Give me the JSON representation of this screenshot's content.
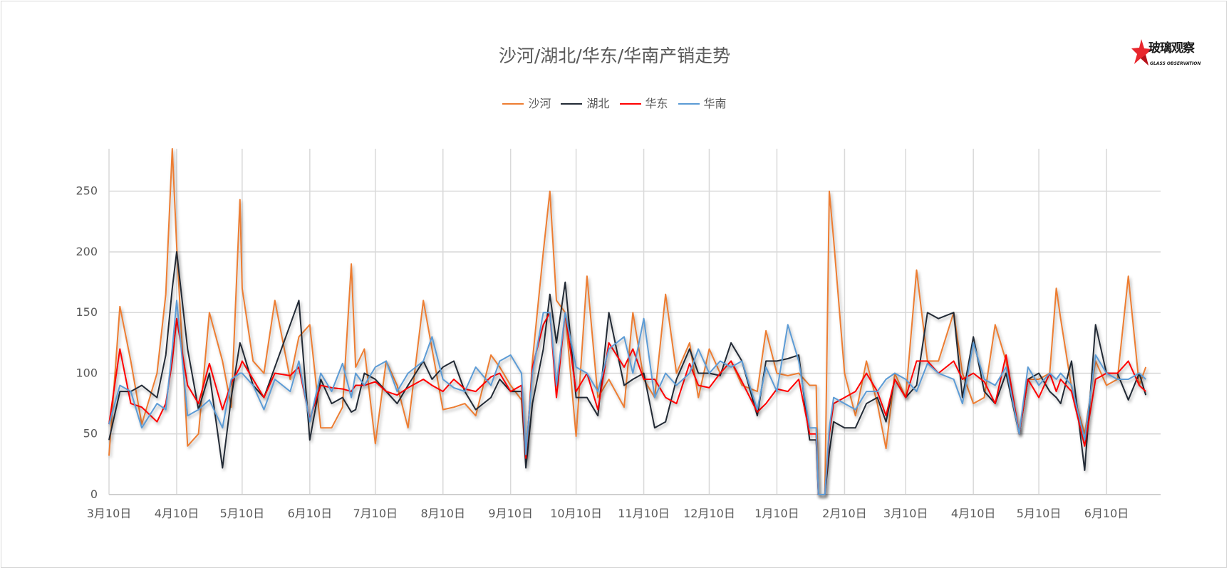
{
  "logo": {
    "text_cn": "玻璃观察",
    "text_en": "GLASS OBSERVATION",
    "accent": "#E8262D"
  },
  "chart_data": {
    "type": "line",
    "title": "沙河/湖北/华东/华南产销走势",
    "xlabel": "",
    "ylabel": "",
    "ylim": [
      0,
      285
    ],
    "yticks": [
      0,
      50,
      100,
      150,
      200,
      250
    ],
    "xticks": [
      "3月10日",
      "4月10日",
      "5月10日",
      "6月10日",
      "7月10日",
      "8月10日",
      "9月10日",
      "10月10日",
      "11月10日",
      "12月10日",
      "1月10日",
      "2月10日",
      "3月10日",
      "4月10日",
      "5月10日",
      "6月10日"
    ],
    "grid": true,
    "legend_position": "top",
    "x": [
      "3月10日",
      "3月15日",
      "3月20日",
      "3月25日",
      "4月1日",
      "4月5日",
      "4月8日",
      "4月10日",
      "4月15日",
      "4月20日",
      "4月25日",
      "5月1日",
      "5月5日",
      "5月9日",
      "5月10日",
      "5月15日",
      "5月20日",
      "5月25日",
      "6月1日",
      "6月5日",
      "6月10日",
      "6月15日",
      "6月20日",
      "6月25日",
      "6月29日",
      "7月1日",
      "7月5日",
      "7月10日",
      "7月15日",
      "7月20日",
      "7月25日",
      "8月1日",
      "8月5日",
      "8月10日",
      "8月15日",
      "8月20日",
      "8月25日",
      "9月1日",
      "9月5日",
      "9月10日",
      "9月15日",
      "9月17日",
      "9月20日",
      "9月25日",
      "9月28日",
      "10月1日",
      "10月5日",
      "10月10日",
      "10月15日",
      "10月20日",
      "10月25日",
      "11月1日",
      "11月5日",
      "11月10日",
      "11月15日",
      "11月20日",
      "11月25日",
      "12月1日",
      "12月5日",
      "12月10日",
      "12月15日",
      "12月20日",
      "12月25日",
      "1月1日",
      "1月5日",
      "1月10日",
      "1月15日",
      "1月20日",
      "1月25日",
      "1月28日",
      "1月29日",
      "2月1日",
      "2月3日",
      "2月5日",
      "2月10日",
      "2月15日",
      "2月20日",
      "2月25日",
      "3月1日",
      "3月5日",
      "3月10日",
      "3月15日",
      "3月20日",
      "3月25日",
      "4月1日",
      "4月5日",
      "4月10日",
      "4月15日",
      "4月20日",
      "4月25日",
      "5月1日",
      "5月5日",
      "5月10日",
      "5月15日",
      "5月18日",
      "5月20日",
      "5月25日",
      "5月31日",
      "6月5日",
      "6月10日",
      "6月15日",
      "6月20日",
      "6月25日",
      "6月28日"
    ],
    "series": [
      {
        "name": "沙河",
        "color": "#ED7D31",
        "values": [
          32,
          155,
          110,
          58,
          100,
          165,
          285,
          205,
          40,
          50,
          150,
          110,
          72,
          243,
          170,
          110,
          100,
          160,
          95,
          130,
          140,
          55,
          55,
          72,
          190,
          105,
          120,
          42,
          110,
          90,
          55,
          160,
          120,
          70,
          72,
          75,
          65,
          115,
          105,
          90,
          78,
          25,
          110,
          200,
          250,
          160,
          150,
          48,
          180,
          80,
          95,
          72,
          150,
          95,
          80,
          165,
          100,
          125,
          80,
          120,
          100,
          110,
          90,
          85,
          135,
          100,
          98,
          100,
          90,
          90,
          0,
          0,
          250,
          210,
          100,
          65,
          110,
          75,
          38,
          100,
          80,
          185,
          110,
          110,
          150,
          100,
          75,
          80,
          140,
          110,
          50,
          95,
          95,
          100,
          170,
          145,
          88,
          50,
          110,
          90,
          95,
          180,
          90,
          105
        ]
      },
      {
        "name": "湖北",
        "color": "#222A35",
        "values": [
          45,
          85,
          85,
          90,
          80,
          115,
          170,
          200,
          120,
          70,
          100,
          22,
          80,
          125,
          120,
          90,
          80,
          105,
          140,
          160,
          45,
          95,
          75,
          80,
          68,
          70,
          100,
          95,
          85,
          75,
          90,
          110,
          95,
          105,
          110,
          85,
          70,
          80,
          95,
          85,
          85,
          22,
          75,
          120,
          165,
          125,
          175,
          80,
          80,
          65,
          150,
          90,
          95,
          100,
          55,
          60,
          95,
          120,
          100,
          100,
          98,
          125,
          110,
          65,
          110,
          110,
          112,
          115,
          45,
          45,
          0,
          0,
          35,
          60,
          55,
          55,
          75,
          80,
          60,
          95,
          80,
          90,
          150,
          145,
          150,
          80,
          130,
          85,
          75,
          100,
          50,
          95,
          100,
          85,
          80,
          75,
          110,
          20,
          140,
          100,
          100,
          78,
          100,
          82
        ]
      },
      {
        "name": "华东",
        "color": "#FF0000",
        "values": [
          58,
          120,
          75,
          72,
          60,
          75,
          110,
          145,
          90,
          75,
          108,
          70,
          92,
          105,
          110,
          95,
          80,
          100,
          98,
          105,
          62,
          90,
          88,
          87,
          85,
          90,
          90,
          93,
          85,
          82,
          88,
          95,
          90,
          85,
          95,
          87,
          85,
          97,
          100,
          85,
          90,
          30,
          105,
          140,
          150,
          80,
          150,
          85,
          100,
          70,
          125,
          105,
          120,
          95,
          95,
          80,
          75,
          108,
          90,
          88,
          100,
          110,
          93,
          68,
          75,
          87,
          85,
          95,
          50,
          50,
          0,
          0,
          50,
          75,
          80,
          85,
          100,
          85,
          65,
          95,
          80,
          110,
          110,
          100,
          110,
          95,
          100,
          93,
          75,
          115,
          50,
          95,
          80,
          100,
          85,
          95,
          85,
          40,
          95,
          100,
          100,
          110,
          90,
          85
        ]
      },
      {
        "name": "华南",
        "color": "#5B9BD5",
        "values": [
          58,
          90,
          85,
          55,
          75,
          70,
          120,
          160,
          65,
          70,
          78,
          55,
          95,
          100,
          100,
          90,
          70,
          95,
          85,
          110,
          60,
          100,
          85,
          108,
          80,
          100,
          90,
          105,
          110,
          85,
          100,
          110,
          130,
          95,
          88,
          85,
          105,
          90,
          110,
          115,
          100,
          33,
          100,
          150,
          150,
          90,
          150,
          105,
          100,
          85,
          120,
          130,
          100,
          145,
          80,
          100,
          90,
          100,
          120,
          100,
          110,
          105,
          110,
          70,
          105,
          85,
          140,
          110,
          55,
          55,
          0,
          0,
          55,
          80,
          75,
          70,
          85,
          85,
          95,
          100,
          95,
          85,
          108,
          100,
          95,
          75,
          125,
          95,
          90,
          105,
          50,
          105,
          90,
          100,
          95,
          100,
          90,
          45,
          115,
          100,
          95,
          95,
          100,
          95
        ]
      }
    ]
  }
}
